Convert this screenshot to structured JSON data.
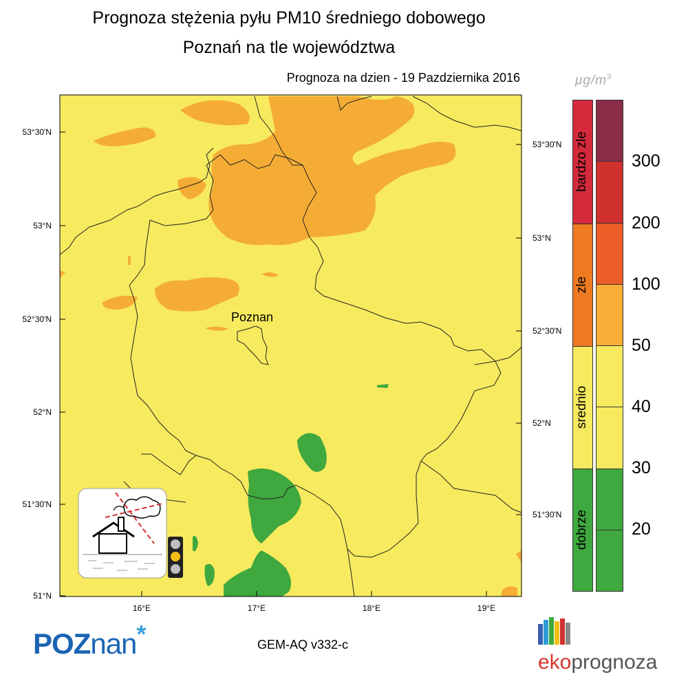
{
  "title_line1": "Prognoza stężenia pyłu PM10 średniego dobowego",
  "title_line2": "Poznań na tle województwa",
  "forecast_date": "Prognoza na dzien -  19 Pazdziernika 2016",
  "unit_label": "μg/m",
  "unit_exponent": "3",
  "city_label": "Poznan",
  "model_label": "GEM-AQ v332-c",
  "poznan_logo": {
    "main": "POZ",
    "tail": "nan",
    "star": "*"
  },
  "ekoprognoza_logo": {
    "first": "eko",
    "rest": "prognoza"
  },
  "lat_labels_left": [
    "53°30'N",
    "53°N",
    "52°30'N",
    "52°N",
    "51°30'N",
    "51°N"
  ],
  "lat_labels_right": [
    "53°30'N",
    "53°N",
    "52°30'N",
    "52°N",
    "51°30'N"
  ],
  "lon_labels": [
    "16°E",
    "17°E",
    "18°E",
    "19°E"
  ],
  "legend": {
    "categories": [
      {
        "name": "bardzo zle",
        "color": "#d42a3c"
      },
      {
        "name": "zle",
        "color": "#ee7a22"
      },
      {
        "name": "srednio",
        "color": "#f7ea5f"
      },
      {
        "name": "dobrze",
        "color": "#3fa83e"
      }
    ],
    "levels": [
      {
        "color": "#8b2c48"
      },
      {
        "color": "#d0312e"
      },
      {
        "color": "#ec5e27"
      },
      {
        "color": "#f7ae36"
      },
      {
        "color": "#f7ea5f"
      },
      {
        "color": "#f7ea5f"
      },
      {
        "color": "#3fa83e"
      },
      {
        "color": "#3fa83e"
      }
    ],
    "thresholds": [
      "300",
      "200",
      "100",
      "50",
      "40",
      "30",
      "20"
    ]
  },
  "map_colors": {
    "background": "#f7ea5f",
    "orange": "#f5ac35",
    "green": "#3fa83e"
  },
  "icon": "house-smog-icon",
  "traffic_light_icon": "traffic-light-icon"
}
